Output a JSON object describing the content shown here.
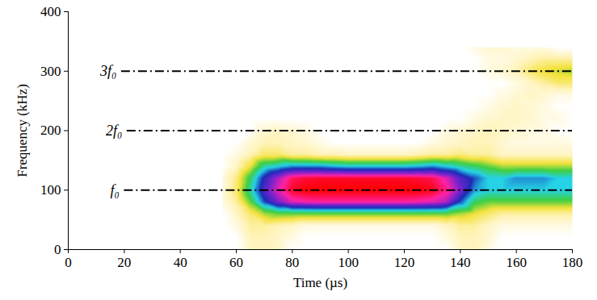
{
  "chart_data": {
    "type": "heatmap",
    "x_label": "Time (µs)",
    "y_label": "Frequency (kHz)",
    "xlim": [
      0,
      180
    ],
    "xticks": [
      0,
      20,
      40,
      60,
      80,
      100,
      120,
      140,
      160,
      180
    ],
    "ylim": [
      0,
      400
    ],
    "yticks": [
      0,
      100,
      200,
      300,
      400
    ],
    "grid": false,
    "zlim": [
      0,
      1
    ],
    "color": [
      "#ffffff",
      "#fff3b8",
      "#f3e23c",
      "#3fcf42",
      "#25d2e6",
      "#1b2cb6",
      "#7a22cf",
      "#ff22a6",
      "#ff0000"
    ],
    "cells": {
      "x": [
        55,
        60,
        65,
        70,
        75,
        80,
        85,
        90,
        95,
        100,
        105,
        110,
        115,
        120,
        125,
        130,
        135,
        140,
        145,
        150,
        155,
        160,
        165,
        170,
        175,
        180
      ],
      "y": [
        0,
        20,
        40,
        60,
        80,
        100,
        120,
        140,
        160,
        180,
        200,
        220,
        240,
        260,
        280,
        300,
        320,
        340
      ],
      "z": [
        [
          0,
          0,
          0.1,
          0.12,
          0.1,
          0,
          0,
          0,
          0,
          0,
          0,
          0,
          0,
          0,
          0,
          0,
          0,
          0.1,
          0.12,
          0.05,
          0,
          0,
          0,
          0,
          0,
          0
        ],
        [
          0,
          0,
          0.12,
          0.12,
          0.1,
          0.05,
          0,
          0,
          0,
          0,
          0,
          0,
          0,
          0,
          0,
          0,
          0.05,
          0.12,
          0.12,
          0.08,
          0,
          0,
          0,
          0,
          0,
          0
        ],
        [
          0,
          0.05,
          0.15,
          0.15,
          0.12,
          0.1,
          0.05,
          0.05,
          0.05,
          0.05,
          0.05,
          0.05,
          0.05,
          0.05,
          0.05,
          0.05,
          0.1,
          0.15,
          0.15,
          0.1,
          0.05,
          0.05,
          0.05,
          0.05,
          0.05,
          0.05
        ],
        [
          0,
          0.1,
          0.2,
          0.3,
          0.35,
          0.35,
          0.35,
          0.35,
          0.35,
          0.35,
          0.35,
          0.35,
          0.35,
          0.35,
          0.35,
          0.35,
          0.35,
          0.3,
          0.25,
          0.2,
          0.15,
          0.15,
          0.15,
          0.15,
          0.15,
          0.15
        ],
        [
          0.05,
          0.15,
          0.35,
          0.6,
          0.75,
          0.85,
          0.87,
          0.88,
          0.88,
          0.88,
          0.88,
          0.88,
          0.88,
          0.88,
          0.87,
          0.85,
          0.8,
          0.6,
          0.4,
          0.35,
          0.35,
          0.35,
          0.35,
          0.35,
          0.35,
          0.35
        ],
        [
          0.05,
          0.2,
          0.45,
          0.7,
          0.85,
          0.97,
          1,
          1,
          1,
          1,
          1,
          1,
          1,
          1,
          1,
          0.98,
          0.9,
          0.75,
          0.55,
          0.5,
          0.5,
          0.5,
          0.5,
          0.5,
          0.5,
          0.5
        ],
        [
          0.05,
          0.18,
          0.4,
          0.65,
          0.8,
          0.93,
          0.96,
          0.97,
          0.97,
          0.97,
          0.97,
          0.97,
          0.97,
          0.97,
          0.96,
          0.94,
          0.85,
          0.7,
          0.6,
          0.5,
          0.5,
          0.55,
          0.55,
          0.55,
          0.5,
          0.5
        ],
        [
          0,
          0.1,
          0.25,
          0.45,
          0.5,
          0.55,
          0.55,
          0.55,
          0.52,
          0.5,
          0.5,
          0.5,
          0.5,
          0.5,
          0.52,
          0.55,
          0.5,
          0.45,
          0.4,
          0.35,
          0.3,
          0.3,
          0.3,
          0.3,
          0.3,
          0.3
        ],
        [
          0,
          0.05,
          0.12,
          0.2,
          0.2,
          0.15,
          0.15,
          0.12,
          0.12,
          0.1,
          0.1,
          0.1,
          0.1,
          0.1,
          0.12,
          0.15,
          0.15,
          0.18,
          0.15,
          0.15,
          0.1,
          0.1,
          0.1,
          0.1,
          0.1,
          0.1
        ],
        [
          0,
          0,
          0.08,
          0.12,
          0.12,
          0.1,
          0.08,
          0.05,
          0,
          0,
          0,
          0,
          0,
          0,
          0,
          0.05,
          0.08,
          0.1,
          0.12,
          0.12,
          0.08,
          0.05,
          0.05,
          0.05,
          0.05,
          0.05
        ],
        [
          0,
          0,
          0,
          0.08,
          0.1,
          0.08,
          0.05,
          0,
          0,
          0,
          0,
          0,
          0,
          0,
          0,
          0,
          0.05,
          0.08,
          0.1,
          0.12,
          0.1,
          0.08,
          0.05,
          0.05,
          0,
          0
        ],
        [
          0,
          0,
          0,
          0,
          0,
          0,
          0,
          0,
          0,
          0,
          0,
          0,
          0,
          0,
          0,
          0,
          0,
          0,
          0.05,
          0.08,
          0.1,
          0.1,
          0.08,
          0.05,
          0.05,
          0
        ],
        [
          0,
          0,
          0,
          0,
          0,
          0,
          0,
          0,
          0,
          0,
          0,
          0,
          0,
          0,
          0,
          0,
          0,
          0,
          0,
          0.05,
          0.08,
          0.1,
          0.08,
          0.05,
          0,
          0
        ],
        [
          0,
          0,
          0,
          0,
          0,
          0,
          0,
          0,
          0,
          0,
          0,
          0,
          0,
          0,
          0,
          0,
          0,
          0,
          0,
          0,
          0.05,
          0.08,
          0.1,
          0.08,
          0.05,
          0.05
        ],
        [
          0,
          0,
          0,
          0,
          0,
          0,
          0,
          0,
          0,
          0,
          0,
          0,
          0,
          0,
          0,
          0,
          0,
          0,
          0,
          0,
          0,
          0.05,
          0.1,
          0.15,
          0.2,
          0.2
        ],
        [
          0,
          0,
          0,
          0,
          0,
          0,
          0,
          0,
          0,
          0,
          0,
          0,
          0,
          0,
          0,
          0,
          0,
          0,
          0,
          0.05,
          0.08,
          0.12,
          0.2,
          0.25,
          0.28,
          0.3
        ],
        [
          0,
          0,
          0,
          0,
          0,
          0,
          0,
          0,
          0,
          0,
          0,
          0,
          0,
          0,
          0,
          0,
          0,
          0,
          0,
          0.05,
          0.05,
          0.08,
          0.12,
          0.15,
          0.15,
          0.15
        ],
        [
          0,
          0,
          0,
          0,
          0,
          0,
          0,
          0,
          0,
          0,
          0,
          0,
          0,
          0,
          0,
          0,
          0,
          0,
          0.05,
          0.08,
          0.08,
          0.05,
          0.05,
          0.05,
          0,
          0
        ]
      ]
    },
    "annotations": [
      {
        "label": "f₀",
        "y": 100,
        "x": [
          20,
          180
        ],
        "line_style": "dashdot"
      },
      {
        "label": "2f₀",
        "y": 200,
        "x": [
          21,
          180
        ],
        "line_style": "dashdot"
      },
      {
        "label": "3f₀",
        "y": 300,
        "x": [
          19,
          180
        ],
        "line_style": "dashdot"
      }
    ]
  }
}
